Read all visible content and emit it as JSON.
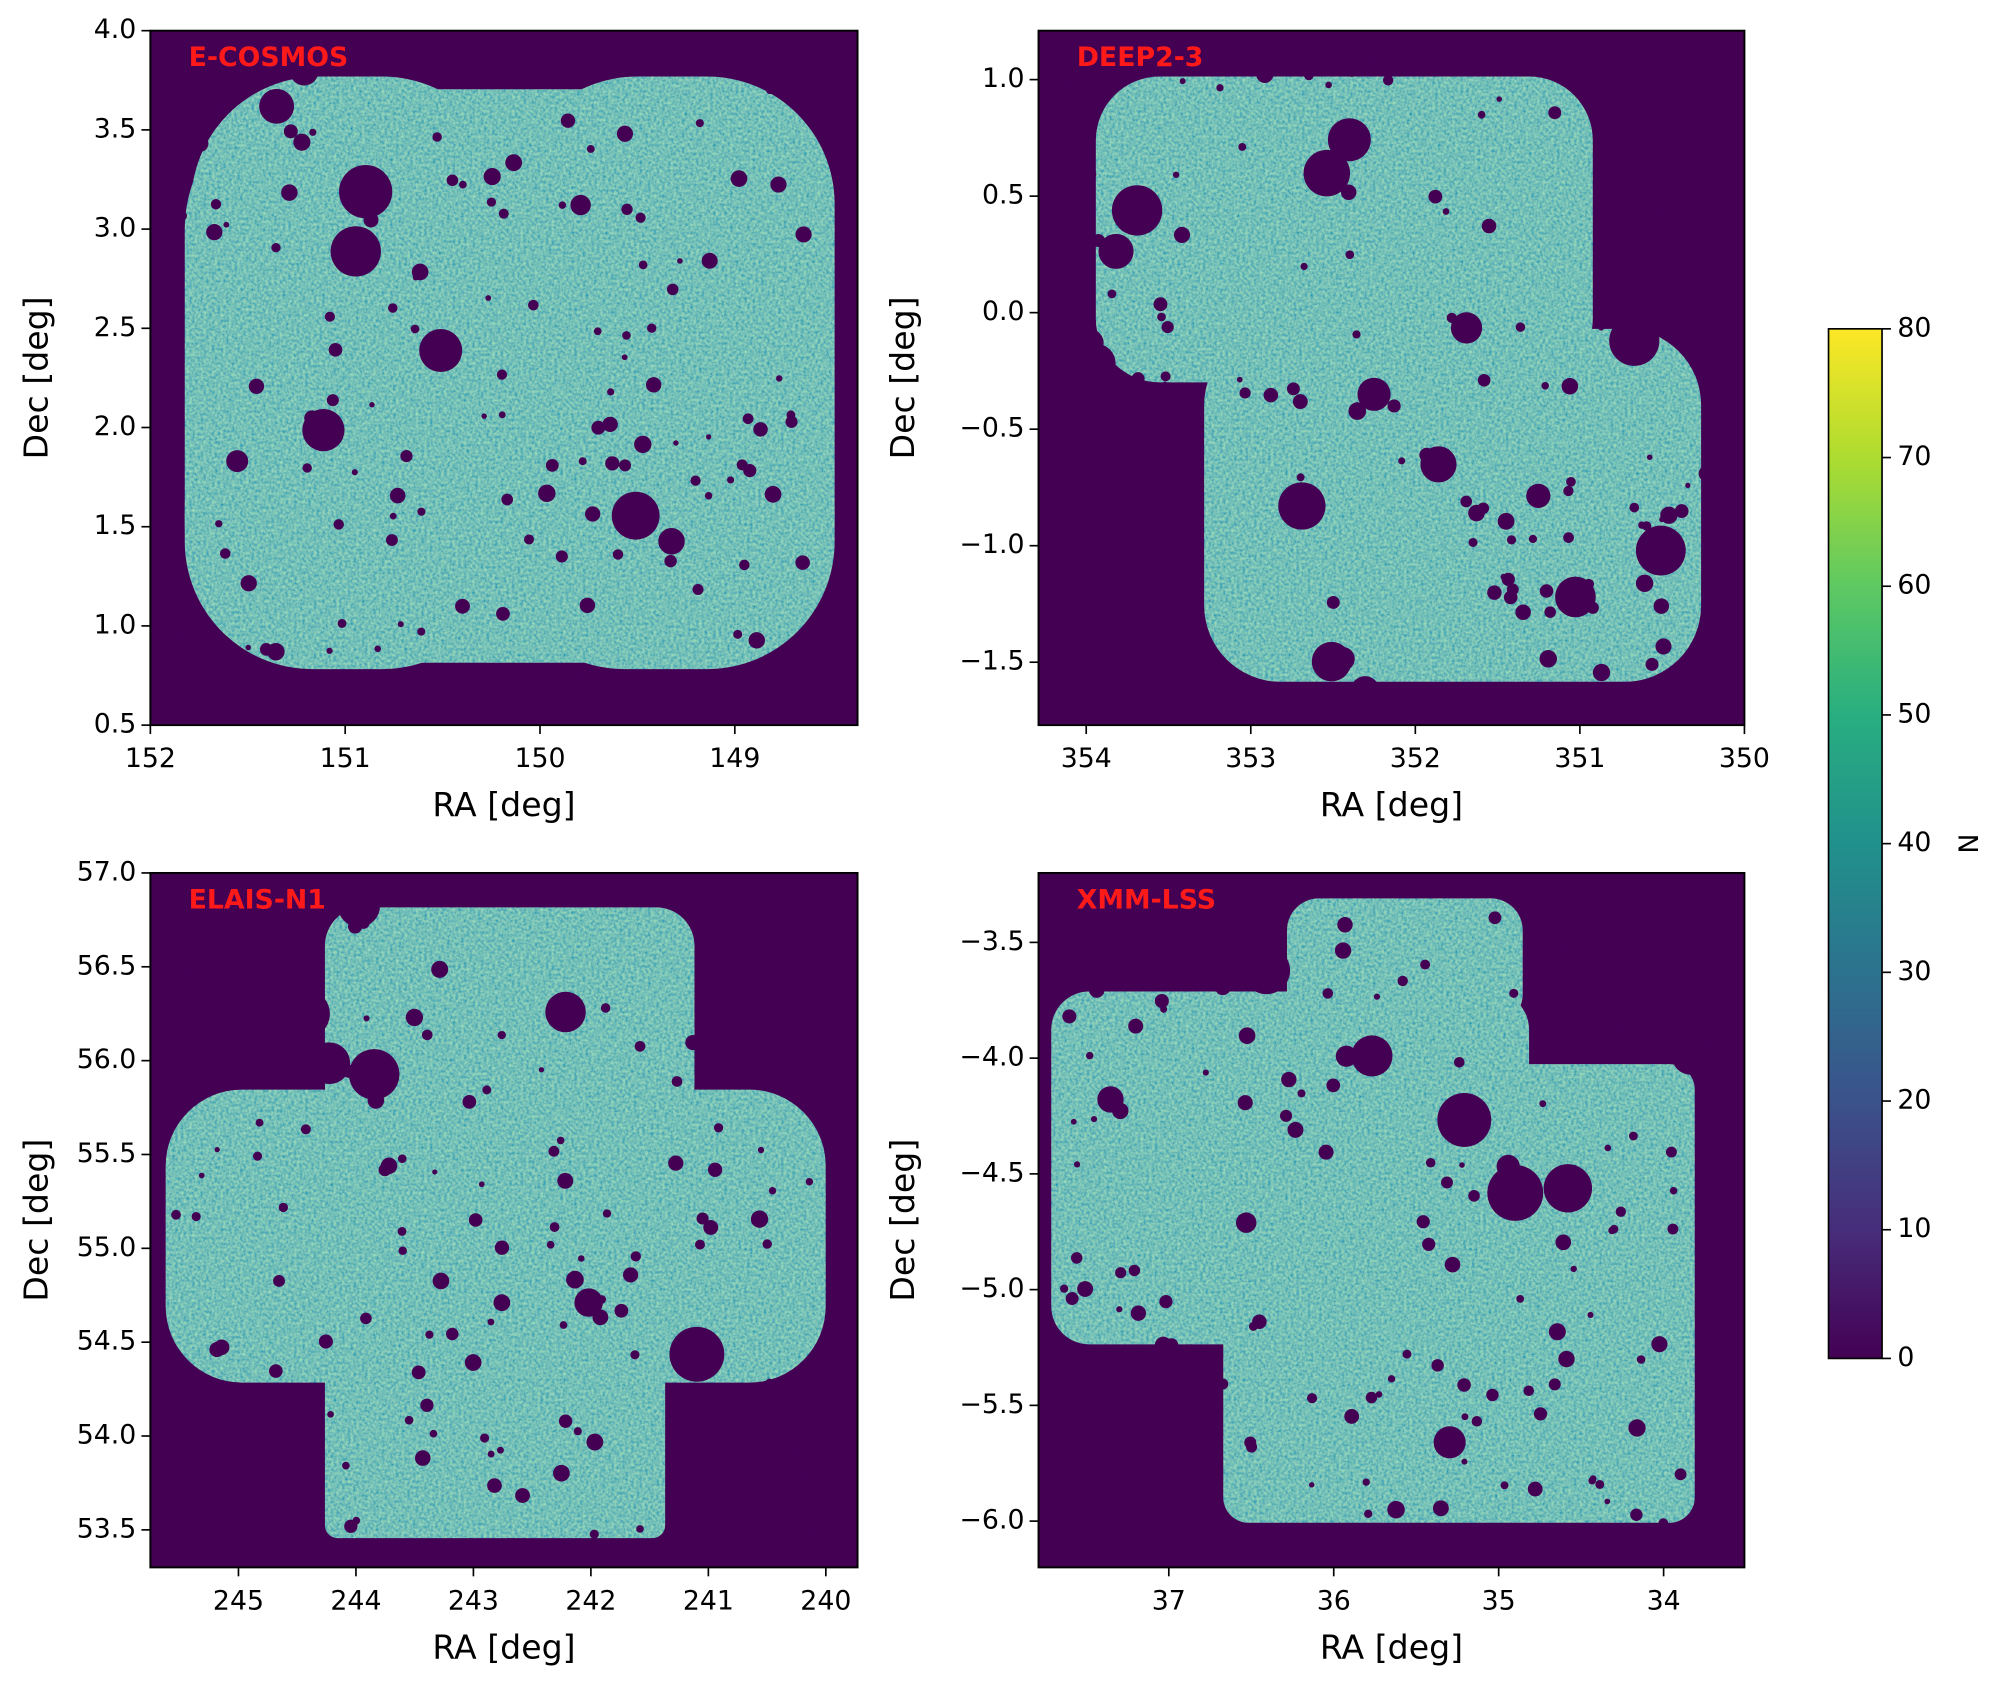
{
  "chart_data": [
    {
      "type": "heatmap",
      "title": "E-COSMOS",
      "xlabel": "RA [deg]",
      "ylabel": "Dec [deg]",
      "xlim": [
        152,
        148.37
      ],
      "ylim": [
        0.5,
        4.0
      ],
      "xticks": [
        152,
        151,
        150,
        149
      ],
      "yticks": [
        0.5,
        {
          "value": 1,
          "label": "1.0"
        },
        1.5,
        {
          "value": 2,
          "label": "2.0"
        },
        2.5,
        {
          "value": 3,
          "label": "3.0"
        },
        3.5,
        {
          "value": 4,
          "label": "4.0"
        }
      ]
    },
    {
      "type": "heatmap",
      "title": "DEEP2-3",
      "xlabel": "RA [deg]",
      "ylabel": "Dec [deg]",
      "xlim": [
        354.29,
        350
      ],
      "ylim": [
        -1.77,
        1.21
      ],
      "xticks": [
        354,
        353,
        352,
        351,
        350
      ],
      "yticks": [
        {
          "value": -1.5,
          "label": "−1.5"
        },
        {
          "value": -1,
          "label": "−1.0"
        },
        {
          "value": -0.5,
          "label": "−0.5"
        },
        {
          "value": 0,
          "label": "0.0"
        },
        0.5,
        {
          "value": 1,
          "label": "1.0"
        }
      ]
    },
    {
      "type": "heatmap",
      "title": "ELAIS-N1",
      "xlabel": "RA [deg]",
      "ylabel": "Dec [deg]",
      "xlim": [
        245.75,
        239.73
      ],
      "ylim": [
        53.3,
        57.0
      ],
      "xticks": [
        245,
        244,
        243,
        242,
        241,
        240
      ],
      "yticks": [
        53.5,
        {
          "value": 54,
          "label": "54.0"
        },
        54.5,
        {
          "value": 55,
          "label": "55.0"
        },
        55.5,
        {
          "value": 56,
          "label": "56.0"
        },
        56.5,
        {
          "value": 57,
          "label": "57.0"
        }
      ]
    },
    {
      "type": "heatmap",
      "title": "XMM-LSS",
      "xlabel": "RA [deg]",
      "ylabel": "Dec [deg]",
      "xlim": [
        37.79,
        33.51
      ],
      "ylim": [
        -6.2,
        -3.2
      ],
      "xticks": [
        37,
        36,
        35,
        34
      ],
      "yticks": [
        {
          "value": -6,
          "label": "−6.0"
        },
        {
          "value": -5.5,
          "label": "−5.5"
        },
        {
          "value": -5,
          "label": "−5.0"
        },
        {
          "value": -4.5,
          "label": "−4.5"
        },
        {
          "value": -4,
          "label": "−4.0"
        },
        {
          "value": -3.5,
          "label": "−3.5"
        }
      ]
    }
  ],
  "colorbar": {
    "label": "N",
    "lim": [
      0,
      80
    ],
    "ticks": [
      0,
      10,
      20,
      30,
      40,
      50,
      60,
      70,
      80
    ],
    "colormap": "viridis"
  }
}
